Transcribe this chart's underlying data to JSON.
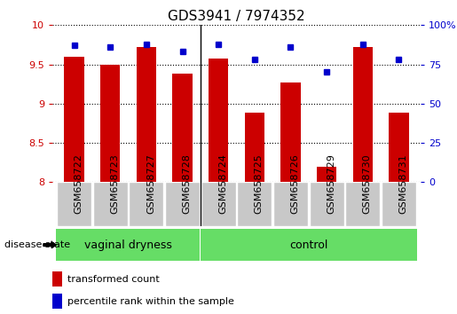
{
  "title": "GDS3941 / 7974352",
  "samples": [
    "GSM658722",
    "GSM658723",
    "GSM658727",
    "GSM658728",
    "GSM658724",
    "GSM658725",
    "GSM658726",
    "GSM658729",
    "GSM658730",
    "GSM658731"
  ],
  "transformed_count": [
    9.6,
    9.5,
    9.72,
    9.38,
    9.57,
    8.88,
    9.27,
    8.2,
    9.72,
    8.88
  ],
  "percentile_rank": [
    87,
    86,
    88,
    83,
    88,
    78,
    86,
    70,
    88,
    78
  ],
  "group_labels": [
    "vaginal dryness",
    "control"
  ],
  "group_split": 4,
  "bar_color": "#CC0000",
  "dot_color": "#0000CC",
  "gray_box_color": "#C8C8C8",
  "green_color": "#66DD66",
  "ylim_left": [
    8.0,
    10.0
  ],
  "ylim_right": [
    0,
    100
  ],
  "yticks_left": [
    8.0,
    8.5,
    9.0,
    9.5,
    10.0
  ],
  "yticks_right": [
    0,
    25,
    50,
    75,
    100
  ],
  "yticklabels_left": [
    "8",
    "8.5",
    "9",
    "9.5",
    "10"
  ],
  "yticklabels_right": [
    "0",
    "25",
    "50",
    "75",
    "100%"
  ],
  "legend_transformed": "transformed count",
  "legend_percentile": "percentile rank within the sample",
  "disease_state_label": "disease state",
  "bar_width": 0.55,
  "bar_color_hex": "#CC0000",
  "dot_color_hex": "#0000CC",
  "tick_label_color_left": "#CC0000",
  "tick_label_color_right": "#0000CC",
  "title_fontsize": 11,
  "tick_fontsize": 8,
  "label_fontsize": 8,
  "group_fontsize": 9
}
